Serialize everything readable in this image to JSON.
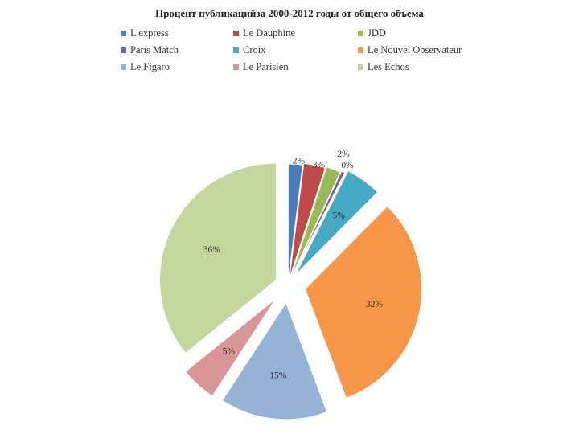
{
  "chart_data": {
    "type": "pie",
    "title": "Процент публикацийза 2000-2012 годы от общего объема",
    "legend_position": "top",
    "slices": [
      {
        "name": "L express",
        "value": 2,
        "label": "2%",
        "color": "#4A7EBB"
      },
      {
        "name": "Le Dauphine",
        "value": 3,
        "label": "3%",
        "color": "#BE4B48"
      },
      {
        "name": "JDD",
        "value": 2,
        "label": "2%",
        "color": "#98B954"
      },
      {
        "name": "Paris Match",
        "value": 0.5,
        "label": "0%",
        "color": "#7D60A0"
      },
      {
        "name": "Croix",
        "value": 5,
        "label": "5%",
        "color": "#46AAC4"
      },
      {
        "name": "Le Nouvel Observateur",
        "value": 32,
        "label": "32%",
        "color": "#F79646"
      },
      {
        "name": "Le Figaro",
        "value": 15,
        "label": "15%",
        "color": "#95B3D7"
      },
      {
        "name": "Le Parisien",
        "value": 5,
        "label": "5%",
        "color": "#D99694"
      },
      {
        "name": "Les Echos",
        "value": 36,
        "label": "36%",
        "color": "#C3D69B"
      }
    ]
  }
}
